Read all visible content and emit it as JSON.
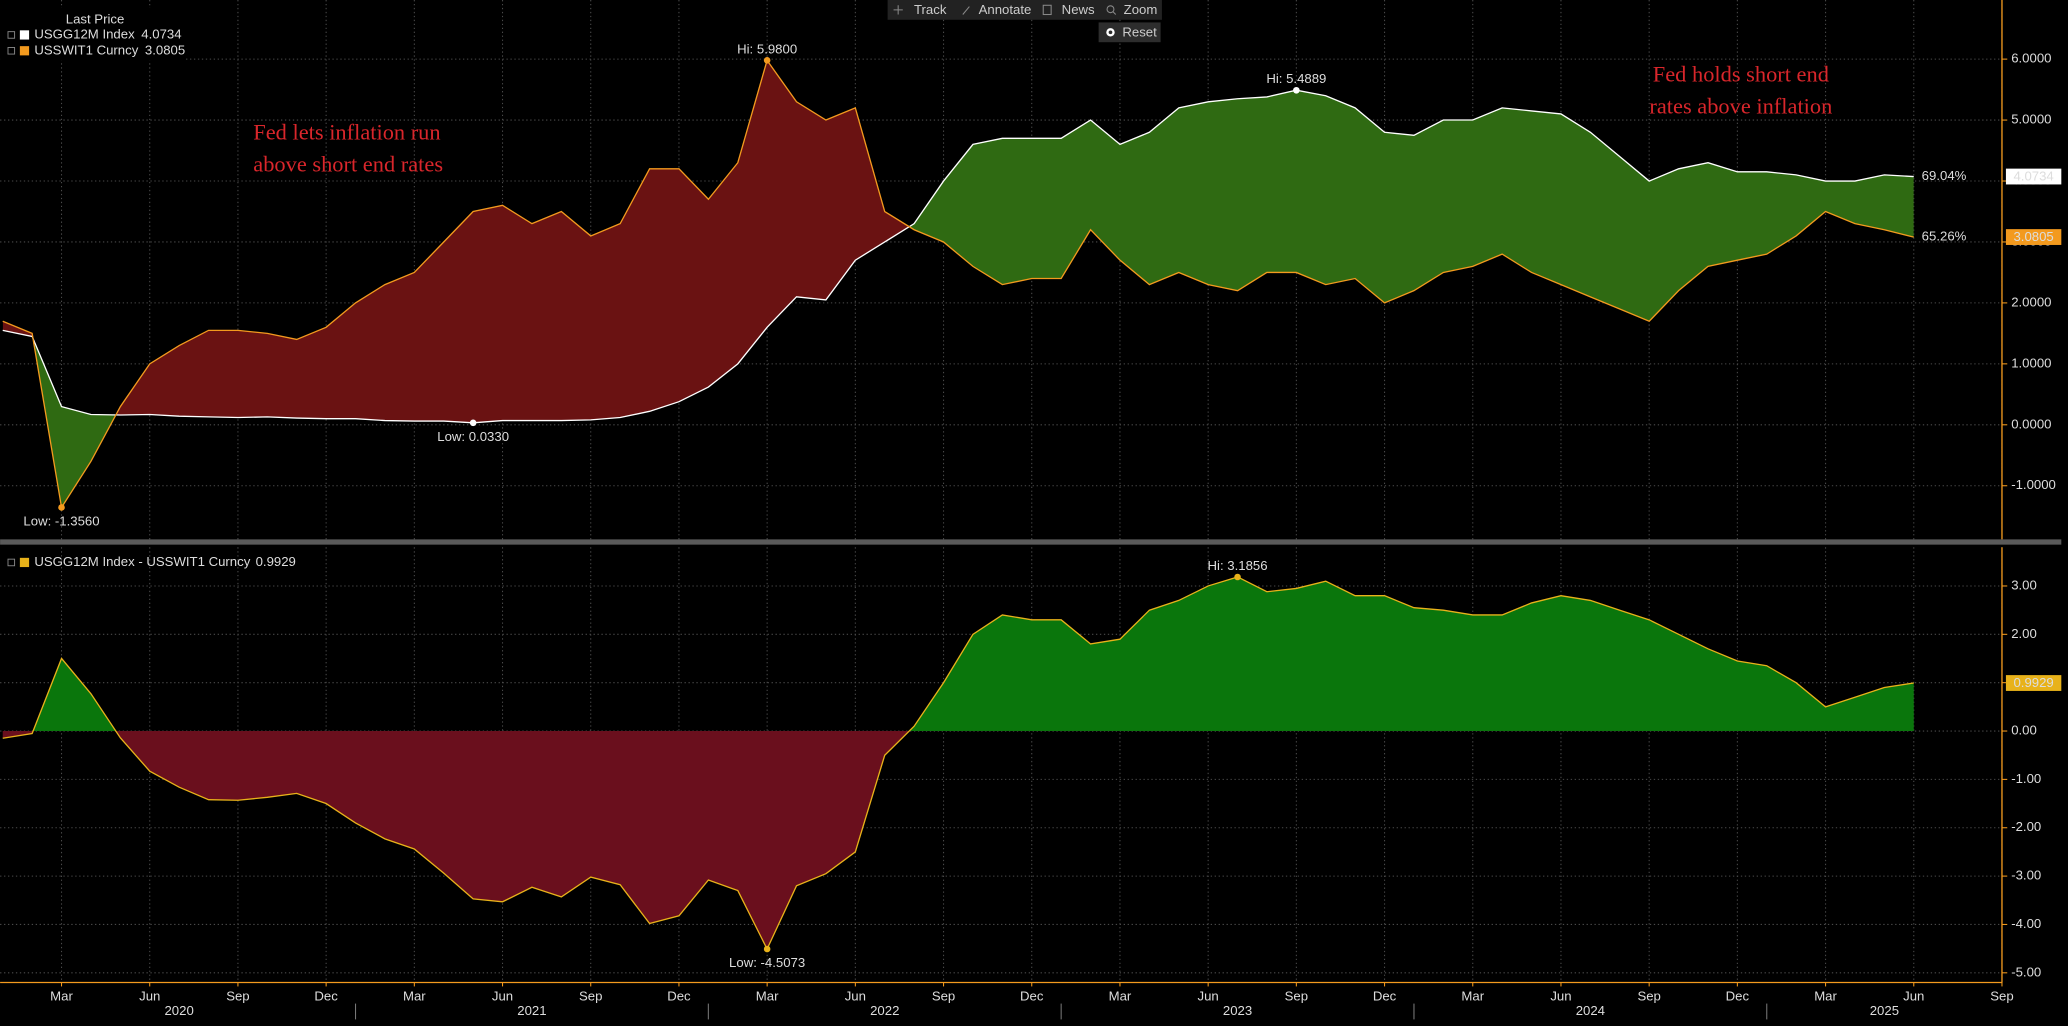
{
  "toolbar": [
    "Track",
    "Annotate",
    "News",
    "Zoom",
    "Reset"
  ],
  "chart_data": [
    {
      "type": "line",
      "legend_title": "Last Price",
      "x": [
        "2020-01",
        "2020-02",
        "2020-03",
        "2020-04",
        "2020-05",
        "2020-06",
        "2020-07",
        "2020-08",
        "2020-09",
        "2020-10",
        "2020-11",
        "2020-12",
        "2021-01",
        "2021-02",
        "2021-03",
        "2021-04",
        "2021-05",
        "2021-06",
        "2021-07",
        "2021-08",
        "2021-09",
        "2021-10",
        "2021-11",
        "2021-12",
        "2022-01",
        "2022-02",
        "2022-03",
        "2022-04",
        "2022-05",
        "2022-06",
        "2022-07",
        "2022-08",
        "2022-09",
        "2022-10",
        "2022-11",
        "2022-12",
        "2023-01",
        "2023-02",
        "2023-03",
        "2023-04",
        "2023-05",
        "2023-06",
        "2023-07",
        "2023-08",
        "2023-09",
        "2023-10",
        "2023-11",
        "2023-12",
        "2024-01",
        "2024-02",
        "2024-03",
        "2024-04",
        "2024-05",
        "2024-06",
        "2024-07",
        "2024-08",
        "2024-09",
        "2024-10",
        "2024-11",
        "2024-12",
        "2025-01",
        "2025-02",
        "2025-03",
        "2025-04",
        "2025-05",
        "2025-06"
      ],
      "series": [
        {
          "name": "USGG12M Index",
          "color": "#ffffff",
          "last_label": "4.0734",
          "end_label": "69.04%",
          "values": [
            1.55,
            1.45,
            0.3,
            0.17,
            0.16,
            0.17,
            0.14,
            0.13,
            0.12,
            0.13,
            0.11,
            0.1,
            0.1,
            0.07,
            0.06,
            0.06,
            0.033,
            0.07,
            0.07,
            0.07,
            0.08,
            0.12,
            0.22,
            0.38,
            0.62,
            1.0,
            1.6,
            2.1,
            2.05,
            2.7,
            3.0,
            3.3,
            4.0,
            4.6,
            4.7,
            4.7,
            4.7,
            5.0,
            4.6,
            4.8,
            5.2,
            5.3,
            5.35,
            5.38,
            5.4889,
            5.4,
            5.2,
            4.8,
            4.75,
            5.0,
            5.0,
            5.2,
            5.15,
            5.1,
            4.8,
            4.4,
            4.0,
            4.2,
            4.3,
            4.15,
            4.15,
            4.1,
            4.0,
            4.0,
            4.1,
            4.0734
          ]
        },
        {
          "name": "USSWIT1 Curncy",
          "color": "#f39a1e",
          "last_label": "3.0805",
          "end_label": "65.26%",
          "values": [
            1.7,
            1.5,
            -1.356,
            -0.6,
            0.3,
            1.0,
            1.3,
            1.55,
            1.55,
            1.5,
            1.4,
            1.6,
            2.0,
            2.3,
            2.5,
            3.0,
            3.5,
            3.6,
            3.3,
            3.5,
            3.1,
            3.3,
            4.2,
            4.2,
            3.7,
            4.3,
            5.98,
            5.3,
            5.0,
            5.2,
            3.5,
            3.2,
            3.0,
            2.6,
            2.3,
            2.4,
            2.4,
            3.2,
            2.7,
            2.3,
            2.5,
            2.3,
            2.2,
            2.5,
            2.5,
            2.3,
            2.4,
            2.0,
            2.2,
            2.5,
            2.6,
            2.8,
            2.5,
            2.3,
            2.1,
            1.9,
            1.7,
            2.2,
            2.6,
            2.7,
            2.8,
            3.1,
            3.5,
            3.3,
            3.2,
            3.0805
          ]
        }
      ],
      "fill_above_color": "#2f6a12",
      "fill_below_color": "#6a1212",
      "xlim": [
        "2020-01",
        "2025-09"
      ],
      "ylim": [
        -1.88,
        6.97
      ],
      "yticks": [
        {
          "value": -1,
          "label": "-1.0000"
        },
        {
          "value": 0,
          "label": "0.0000"
        },
        {
          "value": 1,
          "label": "1.0000"
        },
        {
          "value": 2,
          "label": "2.0000"
        },
        {
          "value": 3,
          "label": "3.0000"
        },
        {
          "value": 4,
          "label": "4.0000"
        },
        {
          "value": 5,
          "label": "5.0000"
        },
        {
          "value": 6,
          "label": "6.0000"
        }
      ],
      "grid": true,
      "annotations": [
        {
          "text": "Hi: 5.9800",
          "x": "2022-03",
          "value": 5.98,
          "color": "#f39a1e"
        },
        {
          "text": "Low: -1.3560",
          "x": "2020-03",
          "value": -1.356,
          "color": "#f39a1e"
        },
        {
          "text": "Hi: 5.4889",
          "x": "2023-09",
          "value": 5.4889,
          "color": "#ffffff"
        },
        {
          "text": "Low: 0.0330",
          "x": "2021-05",
          "value": 0.033,
          "color": "#ffffff"
        }
      ],
      "notes": [
        [
          "Fed lets inflation run",
          "above short end rates"
        ],
        [
          "Fed holds short end",
          "rates above inflation"
        ]
      ]
    },
    {
      "type": "area",
      "x": [
        "2020-01",
        "2020-02",
        "2020-03",
        "2020-04",
        "2020-05",
        "2020-06",
        "2020-07",
        "2020-08",
        "2020-09",
        "2020-10",
        "2020-11",
        "2020-12",
        "2021-01",
        "2021-02",
        "2021-03",
        "2021-04",
        "2021-05",
        "2021-06",
        "2021-07",
        "2021-08",
        "2021-09",
        "2021-10",
        "2021-11",
        "2021-12",
        "2022-01",
        "2022-02",
        "2022-03",
        "2022-04",
        "2022-05",
        "2022-06",
        "2022-07",
        "2022-08",
        "2022-09",
        "2022-10",
        "2022-11",
        "2022-12",
        "2023-01",
        "2023-02",
        "2023-03",
        "2023-04",
        "2023-05",
        "2023-06",
        "2023-07",
        "2023-08",
        "2023-09",
        "2023-10",
        "2023-11",
        "2023-12",
        "2024-01",
        "2024-02",
        "2024-03",
        "2024-04",
        "2024-05",
        "2024-06",
        "2024-07",
        "2024-08",
        "2024-09",
        "2024-10",
        "2024-11",
        "2024-12",
        "2025-01",
        "2025-02",
        "2025-03",
        "2025-04",
        "2025-05",
        "2025-06"
      ],
      "series": [
        {
          "name": "USGG12M Index - USSWIT1 Curncy",
          "color": "#e8b21a",
          "last_label": "0.9929",
          "values": [
            -0.15,
            -0.05,
            1.5,
            0.77,
            -0.14,
            -0.83,
            -1.16,
            -1.42,
            -1.43,
            -1.37,
            -1.29,
            -1.5,
            -1.9,
            -2.23,
            -2.44,
            -2.94,
            -3.47,
            -3.53,
            -3.23,
            -3.43,
            -3.02,
            -3.18,
            -3.98,
            -3.82,
            -3.08,
            -3.3,
            -4.5073,
            -3.2,
            -2.95,
            -2.5,
            -0.5,
            0.1,
            1.0,
            2.0,
            2.4,
            2.3,
            2.3,
            1.8,
            1.9,
            2.5,
            2.7,
            3.0,
            3.1856,
            2.88,
            2.95,
            3.1,
            2.8,
            2.8,
            2.55,
            2.5,
            2.4,
            2.4,
            2.65,
            2.8,
            2.7,
            2.5,
            2.3,
            2.0,
            1.7,
            1.45,
            1.35,
            1.0,
            0.5,
            0.7,
            0.9,
            0.9929
          ]
        }
      ],
      "fill_above_color": "#0a760c",
      "fill_below_color": "#6a0f1d",
      "xlim": [
        "2020-01",
        "2025-09"
      ],
      "ylim": [
        -5.2,
        3.8
      ],
      "yticks": [
        {
          "value": -5,
          "label": "-5.00"
        },
        {
          "value": -4,
          "label": "-4.00"
        },
        {
          "value": -3,
          "label": "-3.00"
        },
        {
          "value": -2,
          "label": "-2.00"
        },
        {
          "value": -1,
          "label": "-1.00"
        },
        {
          "value": 0,
          "label": "0.00"
        },
        {
          "value": 1,
          "label": "1.00"
        },
        {
          "value": 2,
          "label": "2.00"
        },
        {
          "value": 3,
          "label": "3.00"
        }
      ],
      "grid": true,
      "annotations": [
        {
          "text": "Hi: 3.1856",
          "x": "2023-07",
          "value": 3.1856,
          "color": "#e8b21a"
        },
        {
          "text": "Low: -4.5073",
          "x": "2022-03",
          "value": -4.5073,
          "color": "#e8b21a"
        }
      ],
      "xticks": [
        {
          "value": "2020-03",
          "label": "Mar"
        },
        {
          "value": "2020-06",
          "label": "Jun"
        },
        {
          "value": "2020-09",
          "label": "Sep"
        },
        {
          "value": "2020-12",
          "label": "Dec"
        },
        {
          "value": "2021-03",
          "label": "Mar"
        },
        {
          "value": "2021-06",
          "label": "Jun"
        },
        {
          "value": "2021-09",
          "label": "Sep"
        },
        {
          "value": "2021-12",
          "label": "Dec"
        },
        {
          "value": "2022-03",
          "label": "Mar"
        },
        {
          "value": "2022-06",
          "label": "Jun"
        },
        {
          "value": "2022-09",
          "label": "Sep"
        },
        {
          "value": "2022-12",
          "label": "Dec"
        },
        {
          "value": "2023-03",
          "label": "Mar"
        },
        {
          "value": "2023-06",
          "label": "Jun"
        },
        {
          "value": "2023-09",
          "label": "Sep"
        },
        {
          "value": "2023-12",
          "label": "Dec"
        },
        {
          "value": "2024-03",
          "label": "Mar"
        },
        {
          "value": "2024-06",
          "label": "Jun"
        },
        {
          "value": "2024-09",
          "label": "Sep"
        },
        {
          "value": "2024-12",
          "label": "Dec"
        },
        {
          "value": "2025-03",
          "label": "Mar"
        },
        {
          "value": "2025-06",
          "label": "Jun"
        },
        {
          "value": "2025-09",
          "label": "Sep"
        }
      ],
      "xyears": [
        "2020",
        "2021",
        "2022",
        "2023",
        "2024",
        "2025"
      ]
    }
  ]
}
